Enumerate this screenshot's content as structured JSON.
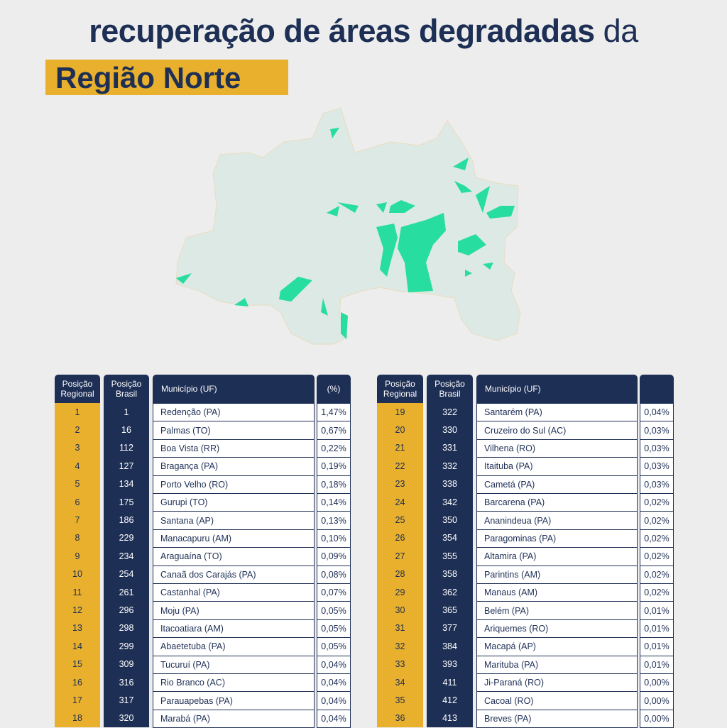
{
  "header": {
    "title_bold": "recuperação de áreas degradadas",
    "title_regular": "da",
    "highlight": "Região Norte"
  },
  "tables": [
    {
      "headers": [
        "Posição Regional",
        "Posição Brasil",
        "Município (UF)",
        "(%)"
      ],
      "rows": [
        [
          "1",
          "1",
          "Redenção (PA)",
          "1,47%"
        ],
        [
          "2",
          "16",
          "Palmas (TO)",
          "0,67%"
        ],
        [
          "3",
          "112",
          "Boa Vista (RR)",
          "0,22%"
        ],
        [
          "4",
          "127",
          "Bragança (PA)",
          "0,19%"
        ],
        [
          "5",
          "134",
          "Porto Velho (RO)",
          "0,18%"
        ],
        [
          "6",
          "175",
          "Gurupi (TO)",
          "0,14%"
        ],
        [
          "7",
          "186",
          "Santana (AP)",
          "0,13%"
        ],
        [
          "8",
          "229",
          "Manacapuru (AM)",
          "0,10%"
        ],
        [
          "9",
          "234",
          "Araguaína (TO)",
          "0,09%"
        ],
        [
          "10",
          "254",
          "Canaã dos Carajás (PA)",
          "0,08%"
        ],
        [
          "11",
          "261",
          "Castanhal (PA)",
          "0,07%"
        ],
        [
          "12",
          "296",
          "Moju (PA)",
          "0,05%"
        ],
        [
          "13",
          "298",
          "Itacoatiara (AM)",
          "0,05%"
        ],
        [
          "14",
          "299",
          "Abaetetuba (PA)",
          "0,05%"
        ],
        [
          "15",
          "309",
          "Tucuruí (PA)",
          "0,04%"
        ],
        [
          "16",
          "316",
          "Rio Branco (AC)",
          "0,04%"
        ],
        [
          "17",
          "317",
          "Parauapebas (PA)",
          "0,04%"
        ],
        [
          "18",
          "320",
          "Marabá (PA)",
          "0,04%"
        ]
      ]
    },
    {
      "headers": [
        "Posição Regional",
        "Posição Brasil",
        "Município (UF)"
      ],
      "rows": [
        [
          "19",
          "322",
          "Santarém (PA)",
          "0,04%"
        ],
        [
          "20",
          "330",
          "Cruzeiro do Sul (AC)",
          "0,03%"
        ],
        [
          "21",
          "331",
          "Vilhena (RO)",
          "0,03%"
        ],
        [
          "22",
          "332",
          "Itaituba (PA)",
          "0,03%"
        ],
        [
          "23",
          "338",
          "Cametá (PA)",
          "0,03%"
        ],
        [
          "24",
          "342",
          "Barcarena (PA)",
          "0,02%"
        ],
        [
          "25",
          "350",
          "Ananindeua (PA)",
          "0,02%"
        ],
        [
          "26",
          "354",
          "Paragominas (PA)",
          "0,02%"
        ],
        [
          "27",
          "355",
          "Altamira (PA)",
          "0,02%"
        ],
        [
          "28",
          "358",
          "Parintins (AM)",
          "0,02%"
        ],
        [
          "29",
          "362",
          "Manaus (AM)",
          "0,02%"
        ],
        [
          "30",
          "365",
          "Belém (PA)",
          "0,01%"
        ],
        [
          "31",
          "377",
          "Ariquemes (RO)",
          "0,01%"
        ],
        [
          "32",
          "384",
          "Macapá (AP)",
          "0,01%"
        ],
        [
          "33",
          "393",
          "Marituba (PA)",
          "0,01%"
        ],
        [
          "34",
          "411",
          "Ji-Paraná (RO)",
          "0,00%"
        ],
        [
          "35",
          "412",
          "Cacoal (RO)",
          "0,00%"
        ],
        [
          "36",
          "413",
          "Breves (PA)",
          "0,00%"
        ]
      ]
    }
  ]
}
